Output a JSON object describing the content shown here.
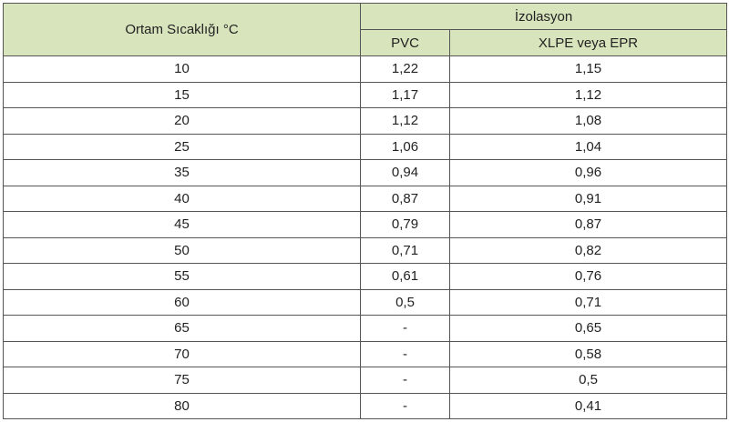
{
  "table": {
    "header": {
      "temperature": "Ortam Sıcaklığı °C",
      "insulation": "İzolasyon",
      "columns": [
        "PVC",
        "XLPE veya EPR"
      ]
    },
    "rows": [
      [
        "10",
        "1,22",
        "1,15"
      ],
      [
        "15",
        "1,17",
        "1,12"
      ],
      [
        "20",
        "1,12",
        "1,08"
      ],
      [
        "25",
        "1,06",
        "1,04"
      ],
      [
        "35",
        "0,94",
        "0,96"
      ],
      [
        "40",
        "0,87",
        "0,91"
      ],
      [
        "45",
        "0,79",
        "0,87"
      ],
      [
        "50",
        "0,71",
        "0,82"
      ],
      [
        "55",
        "0,61",
        "0,76"
      ],
      [
        "60",
        "0,5",
        "0,71"
      ],
      [
        "65",
        "-",
        "0,65"
      ],
      [
        "70",
        "-",
        "0,58"
      ],
      [
        "75",
        "-",
        "0,5"
      ],
      [
        "80",
        "-",
        "0,41"
      ]
    ]
  }
}
